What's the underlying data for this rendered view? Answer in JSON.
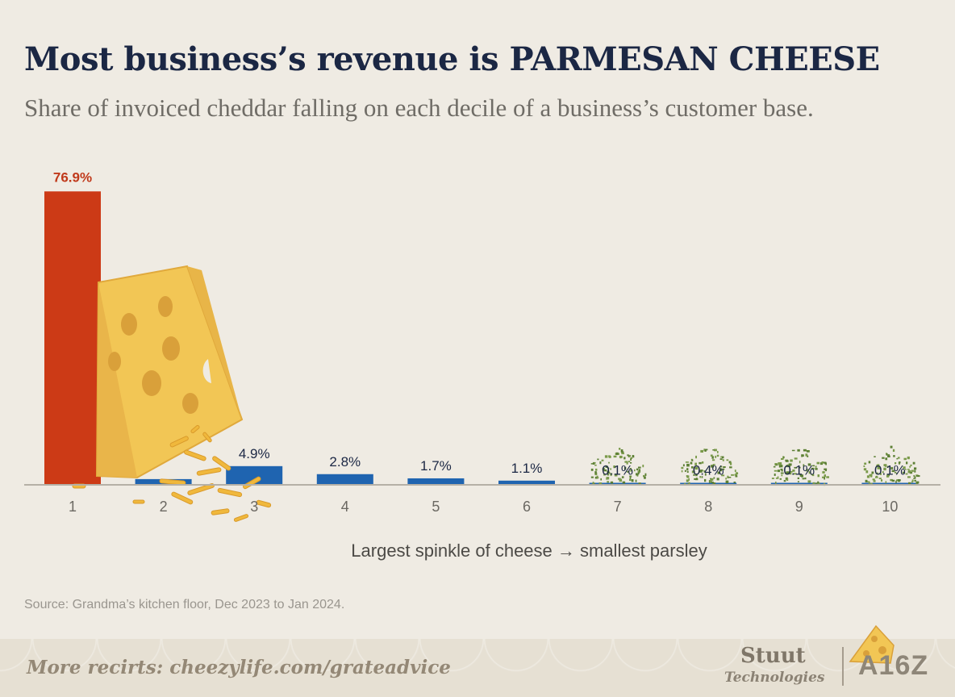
{
  "header": {
    "title": "Most business’s revenue is PARMESAN CHEESE",
    "subtitle": "Share of invoiced cheddar falling on each decile of a business’s customer base."
  },
  "chart_data": {
    "type": "bar",
    "categories": [
      "1",
      "2",
      "3",
      "4",
      "5",
      "6",
      "7",
      "8",
      "9",
      "10"
    ],
    "values": [
      76.9,
      1.5,
      4.9,
      2.8,
      1.7,
      1.1,
      0.1,
      0.4,
      0.1,
      0.1
    ],
    "data_labels": [
      "76.9%",
      "",
      "4.9%",
      "2.8%",
      "1.7%",
      "1.1%",
      "0.1%",
      "0.4%",
      "0.1%",
      "0.1%"
    ],
    "xlabel": "Largest spinkle of cheese →  smallest parsley",
    "ylabel": "",
    "ylim": [
      0,
      80
    ],
    "grid": false,
    "colors": {
      "highlight": "#cc3a16",
      "bar": "#1f64b0",
      "label_highlight": "#c0391b",
      "label": "#1b2744",
      "axis": "#b5b0a6",
      "parsley": "#5c7f34"
    }
  },
  "source": "Source: Grandma’s kitchen floor, Dec 2023 to Jan 2024.",
  "footer": {
    "link": "More recirts: cheezylife.com/grateadvice",
    "brand_primary": "Stuut",
    "brand_secondary": "Technologies",
    "brand_tertiary": "A16Z"
  }
}
